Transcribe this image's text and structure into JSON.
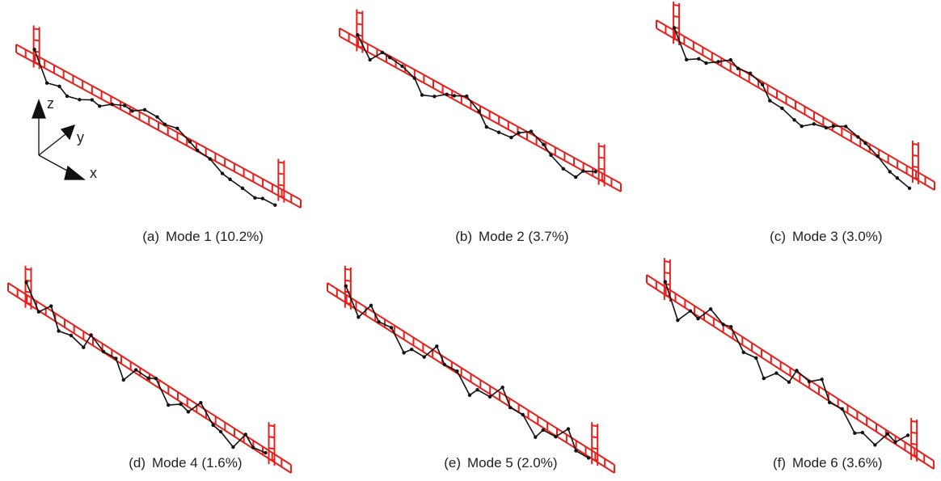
{
  "axes": {
    "z": "z",
    "y": "y",
    "x": "x"
  },
  "panels": [
    {
      "label": "(a)",
      "caption": "Mode 1 (10.2%)"
    },
    {
      "label": "(b)",
      "caption": "Mode 2 (3.7%)"
    },
    {
      "label": "(c)",
      "caption": "Mode 3 (3.0%)"
    },
    {
      "label": "(d)",
      "caption": "Mode 4 (1.6%)"
    },
    {
      "label": "(e)",
      "caption": "Mode 5 (2.0%)"
    },
    {
      "label": "(f)",
      "caption": "Mode 6 (3.6%)"
    }
  ]
}
